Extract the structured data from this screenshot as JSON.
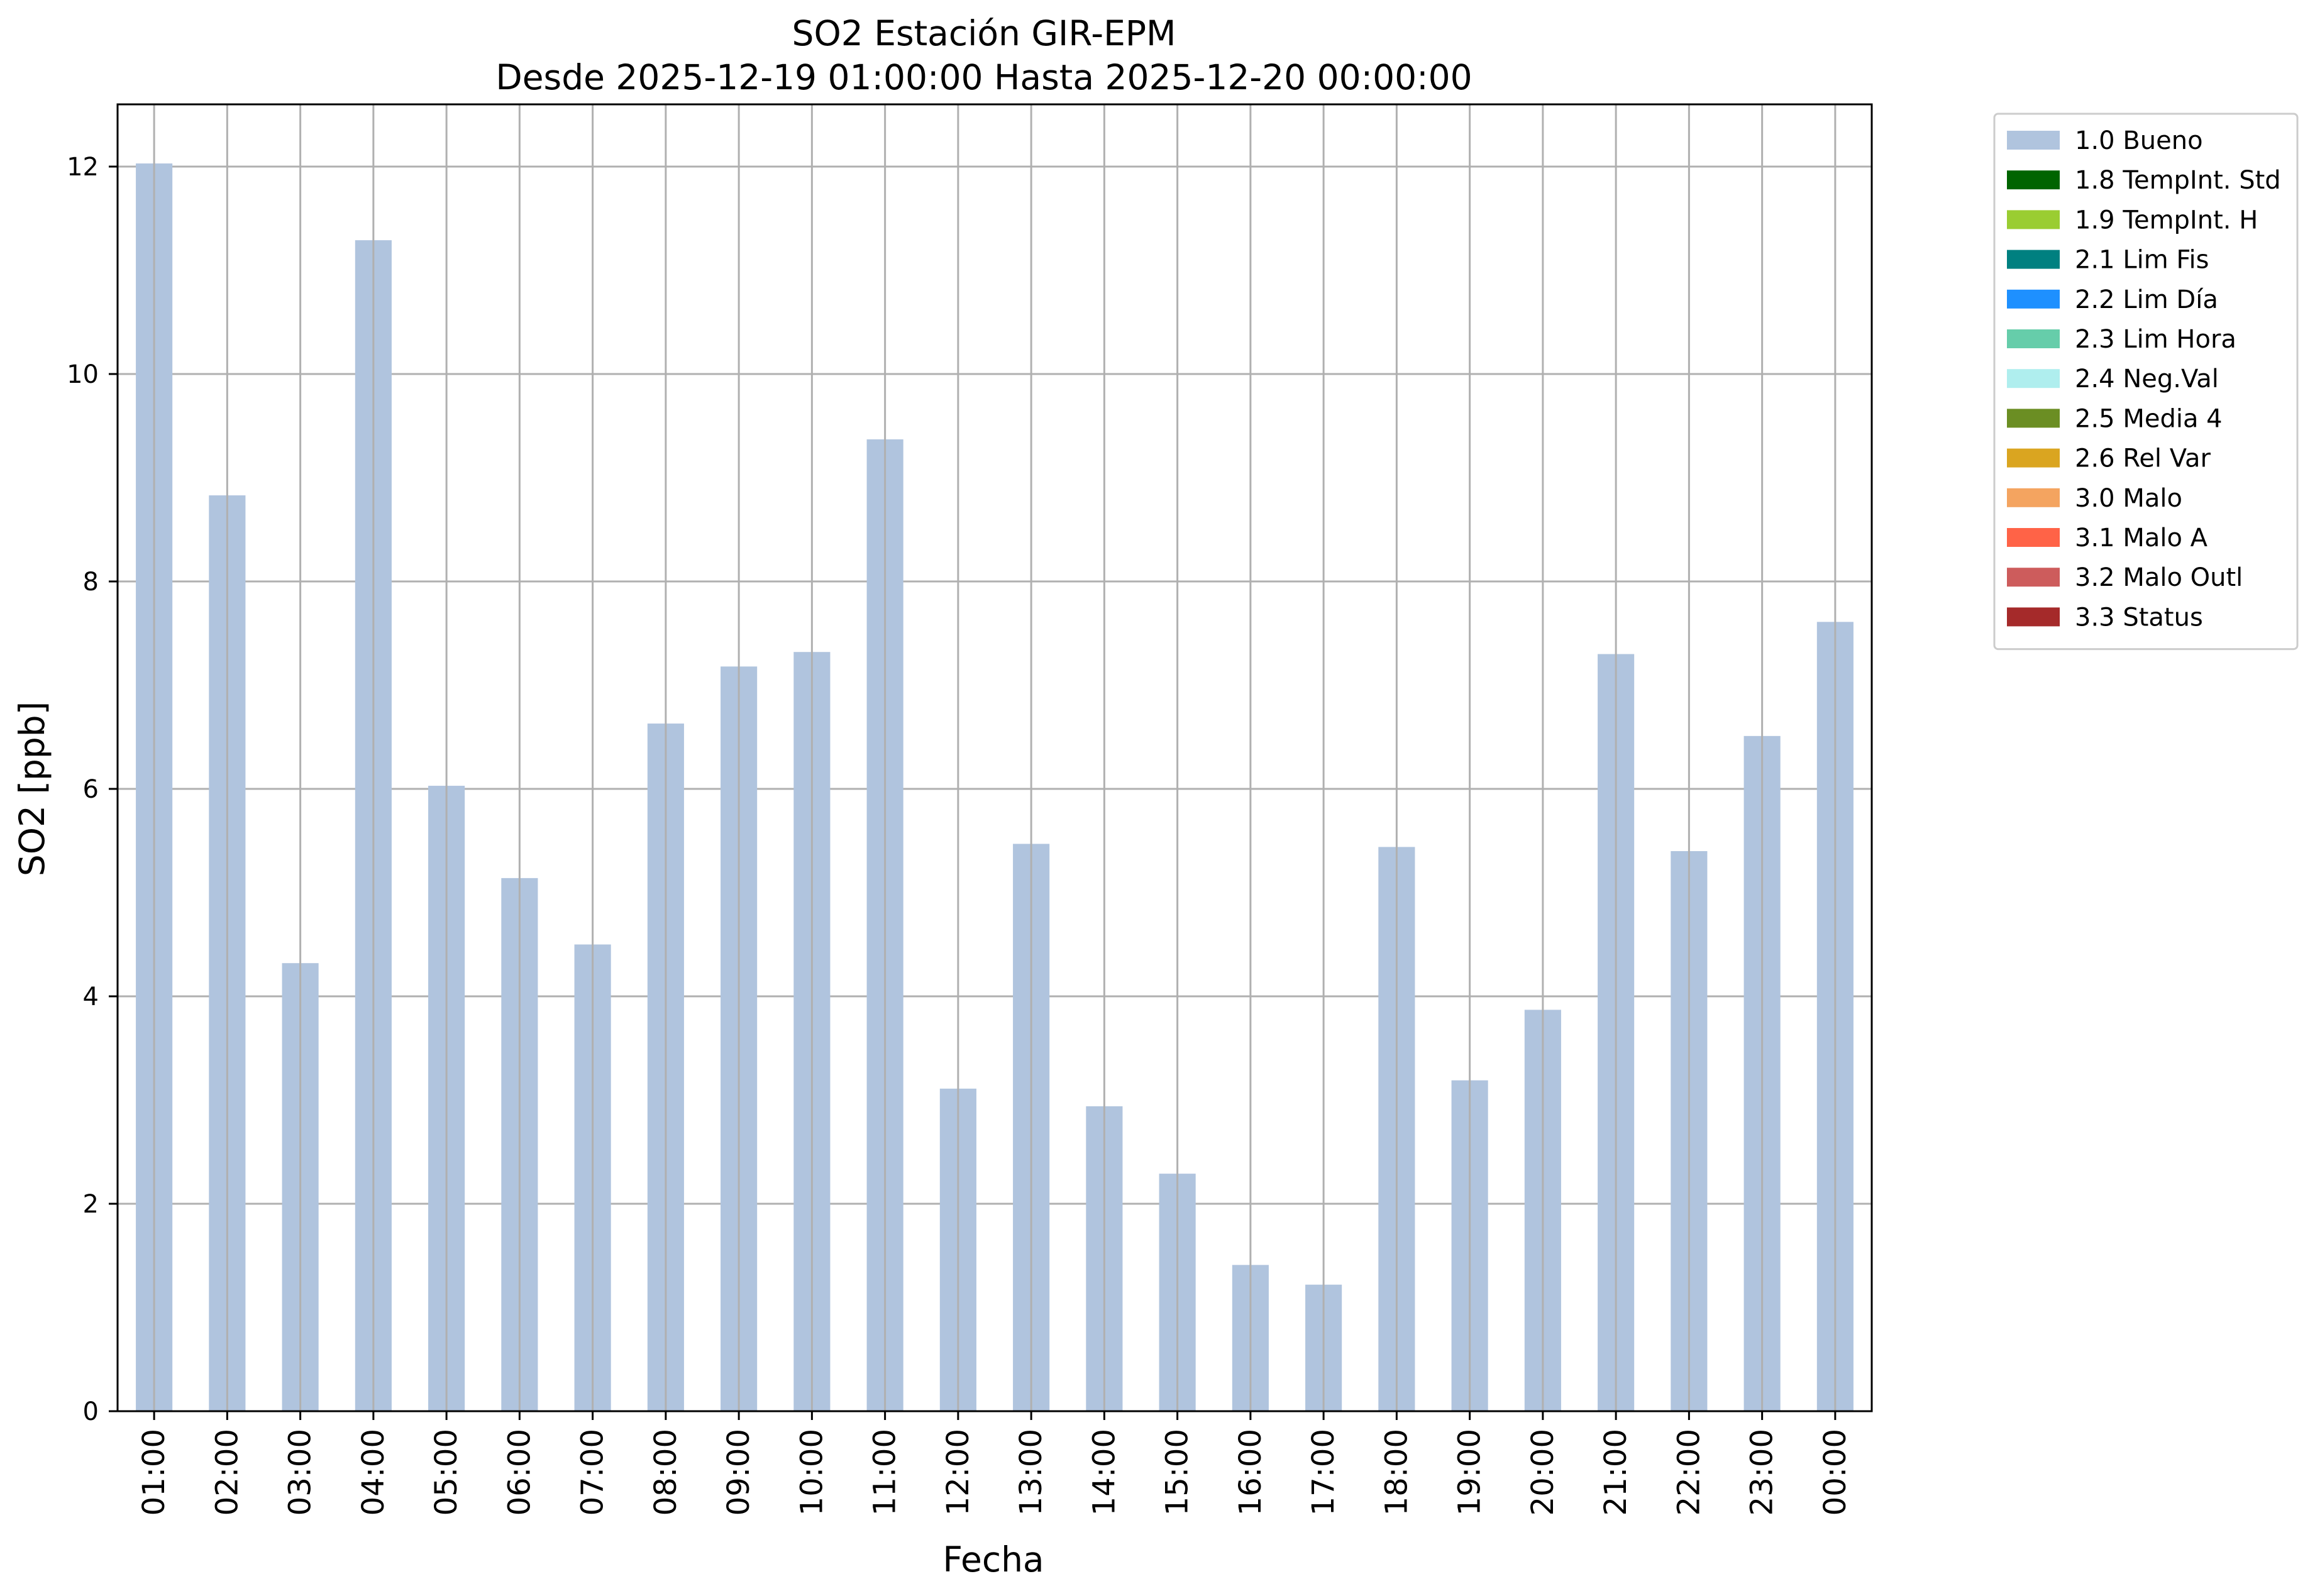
{
  "chart_data": {
    "type": "bar",
    "title": "SO2 Estación GIR-EPM",
    "subtitle": "Desde 2025-12-19 01:00:00 Hasta 2025-12-20 00:00:00",
    "xlabel": "Fecha",
    "ylabel": "SO2 [ppb]",
    "ylim": [
      0,
      12.6
    ],
    "yticks": [
      0,
      2,
      4,
      6,
      8,
      10,
      12
    ],
    "grid": true,
    "legend_position": "outside-top-right",
    "categories": [
      "01:00",
      "02:00",
      "03:00",
      "04:00",
      "05:00",
      "06:00",
      "07:00",
      "08:00",
      "09:00",
      "10:00",
      "11:00",
      "12:00",
      "13:00",
      "14:00",
      "15:00",
      "16:00",
      "17:00",
      "18:00",
      "19:00",
      "20:00",
      "21:00",
      "22:00",
      "23:00",
      "00:00"
    ],
    "series": [
      {
        "name": "1.0 Bueno",
        "color": "#b0c4de",
        "values": [
          12.03,
          8.83,
          4.32,
          11.29,
          6.03,
          5.14,
          4.5,
          6.63,
          7.18,
          7.32,
          9.37,
          3.11,
          5.47,
          2.94,
          2.29,
          1.41,
          1.22,
          5.44,
          3.19,
          3.87,
          7.3,
          5.4,
          6.51,
          7.61
        ]
      }
    ],
    "legend": [
      {
        "label": "1.0 Bueno",
        "color": "#b0c4de"
      },
      {
        "label": "1.8 TempInt. Std",
        "color": "#006400"
      },
      {
        "label": "1.9 TempInt. H",
        "color": "#9acd32"
      },
      {
        "label": "2.1 Lim Fis",
        "color": "#008080"
      },
      {
        "label": "2.2 Lim Día",
        "color": "#1e90ff"
      },
      {
        "label": "2.3 Lim Hora",
        "color": "#66cdaa"
      },
      {
        "label": "2.4 Neg.Val",
        "color": "#afeeee"
      },
      {
        "label": "2.5 Media 4",
        "color": "#6b8e23"
      },
      {
        "label": "2.6 Rel Var",
        "color": "#daa520"
      },
      {
        "label": "3.0 Malo",
        "color": "#f4a460"
      },
      {
        "label": "3.1 Malo A",
        "color": "#ff6347"
      },
      {
        "label": "3.2 Malo Outl",
        "color": "#cd5c5c"
      },
      {
        "label": "3.3 Status",
        "color": "#a52a2a"
      }
    ]
  }
}
